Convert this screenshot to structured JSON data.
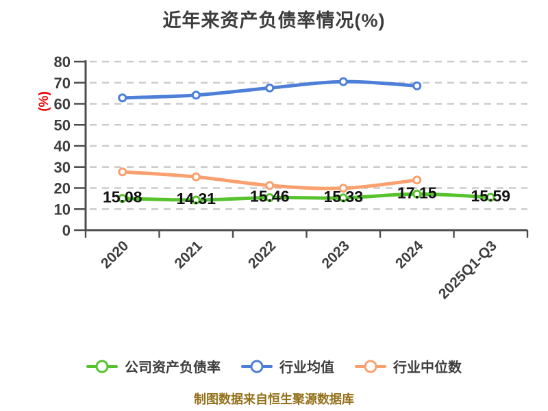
{
  "chart_data": {
    "type": "line",
    "title": "近年来资产负债率情况(%)",
    "y_axis_label": "(%)",
    "categories": [
      "2020",
      "2021",
      "2022",
      "2023",
      "2024",
      "2025Q1-Q3"
    ],
    "series": [
      {
        "name": "公司资产负债率",
        "color": "#56c22d",
        "values": [
          15.08,
          14.31,
          15.46,
          15.33,
          17.15,
          15.59
        ],
        "data_labels": [
          "15.08",
          "14.31",
          "15.46",
          "15.33",
          "17.15",
          "15.59"
        ]
      },
      {
        "name": "行业均值",
        "color": "#4d7ed8",
        "values": [
          62.8,
          64.1,
          67.5,
          70.5,
          68.5,
          null
        ]
      },
      {
        "name": "行业中位数",
        "color": "#f9a06e",
        "values": [
          27.7,
          25.3,
          21.2,
          19.9,
          23.8,
          null
        ]
      }
    ],
    "ylim": [
      0,
      80
    ],
    "y_ticks": [
      0,
      10,
      20,
      30,
      40,
      50,
      60,
      70,
      80
    ],
    "grid": "dashed-horizontal",
    "x_label_rotation": 45,
    "legend_position": "bottom"
  },
  "colors": {
    "background": "#ffffff",
    "grid": "#cccccc",
    "axis": "#4d4d4d",
    "tick_text": "#3d3d3d",
    "title_text": "#3c3c3c",
    "data_label": "#111111",
    "y_axis_label_text": "#e60000",
    "footer_text": "#937019"
  },
  "footer": {
    "credit": "制图数据来自恒生聚源数据库"
  }
}
